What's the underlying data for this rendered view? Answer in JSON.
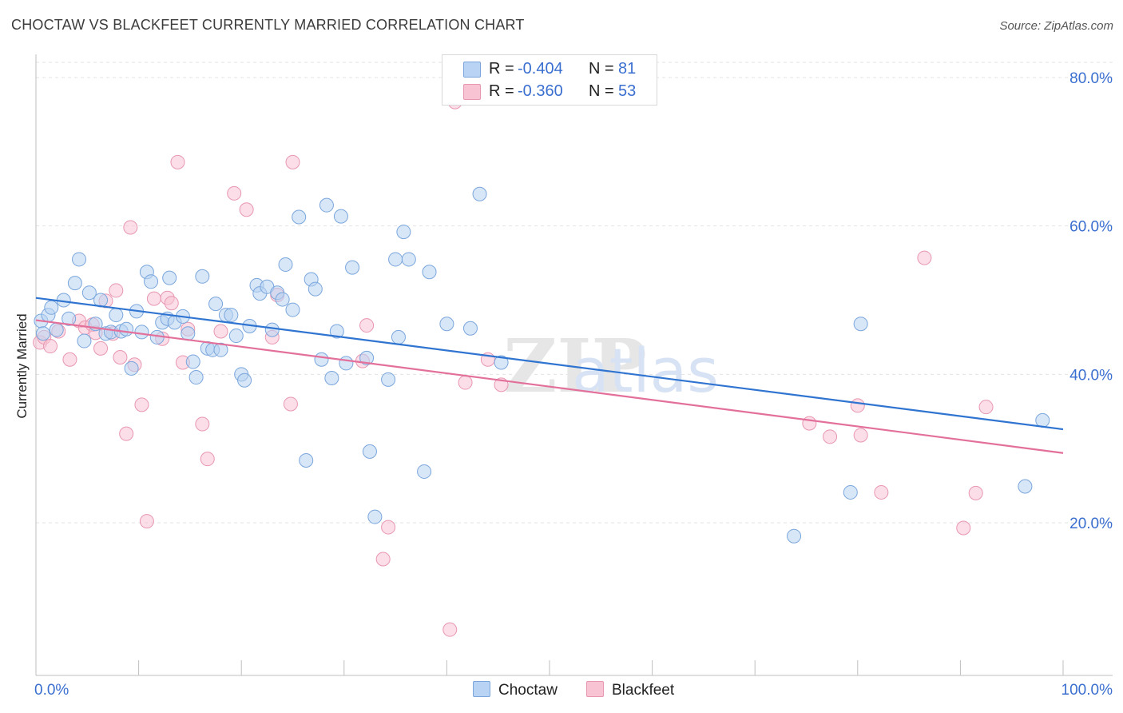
{
  "title": "CHOCTAW VS BLACKFEET CURRENTLY MARRIED CORRELATION CHART",
  "source": "Source: ZipAtlas.com",
  "colors": {
    "choctaw_fill": "#b8d3f3",
    "choctaw_stroke": "#7aa6dc",
    "choctaw_line": "#2f74d0",
    "blackfeet_fill": "#f8c3d3",
    "blackfeet_stroke": "#e897b1",
    "blackfeet_line": "#e3709a",
    "tick_label": "#3a6fd0",
    "grid": "#e3e3e3"
  },
  "legend": {
    "rows": [
      {
        "r_label": "R =",
        "r_value": "-0.404",
        "n_label": "N =",
        "n_value": "81"
      },
      {
        "r_label": "R =",
        "r_value": "-0.360",
        "n_label": "N =",
        "n_value": "53"
      }
    ]
  },
  "bottom_legend": {
    "choctaw": "Choctaw",
    "blackfeet": "Blackfeet"
  },
  "chart_data": {
    "type": "scatter",
    "title": "CHOCTAW VS BLACKFEET CURRENTLY MARRIED CORRELATION CHART",
    "xlabel": "",
    "ylabel": "Currently Married",
    "xlim": [
      0,
      100
    ],
    "ylim": [
      0,
      82
    ],
    "x_tick_labels": [
      "0.0%",
      "100.0%"
    ],
    "y_ticks": [
      20,
      40,
      60,
      80
    ],
    "y_tick_labels": [
      "20.0%",
      "40.0%",
      "60.0%",
      "80.0%"
    ],
    "grid": "horizontal dashed",
    "legend_position": "top-center",
    "watermark": "ZIPatlas",
    "series": [
      {
        "name": "Choctaw",
        "r": -0.404,
        "n": 81,
        "trend": {
          "x": [
            0,
            100
          ],
          "y": [
            50.3,
            32.6
          ]
        },
        "points": [
          [
            0.5,
            47.2
          ],
          [
            0.7,
            45.5
          ],
          [
            1.2,
            48.0
          ],
          [
            1.5,
            49.0
          ],
          [
            2.0,
            46.0
          ],
          [
            2.7,
            50.0
          ],
          [
            3.2,
            47.5
          ],
          [
            3.8,
            52.3
          ],
          [
            4.2,
            55.5
          ],
          [
            4.7,
            44.5
          ],
          [
            5.2,
            51.0
          ],
          [
            5.8,
            46.8
          ],
          [
            6.3,
            50.0
          ],
          [
            6.8,
            45.5
          ],
          [
            7.3,
            45.7
          ],
          [
            7.8,
            48.0
          ],
          [
            8.3,
            45.8
          ],
          [
            8.8,
            46.1
          ],
          [
            9.3,
            40.8
          ],
          [
            9.8,
            48.5
          ],
          [
            10.3,
            45.7
          ],
          [
            10.8,
            53.8
          ],
          [
            11.2,
            52.5
          ],
          [
            11.8,
            45.0
          ],
          [
            12.3,
            47.0
          ],
          [
            12.8,
            47.5
          ],
          [
            13.0,
            53.0
          ],
          [
            13.5,
            47.0
          ],
          [
            14.3,
            47.8
          ],
          [
            14.8,
            45.5
          ],
          [
            15.3,
            41.7
          ],
          [
            15.6,
            39.6
          ],
          [
            16.2,
            53.2
          ],
          [
            16.7,
            43.5
          ],
          [
            17.2,
            43.3
          ],
          [
            17.5,
            49.5
          ],
          [
            18.0,
            43.3
          ],
          [
            18.5,
            48.0
          ],
          [
            19.0,
            48.0
          ],
          [
            19.5,
            45.2
          ],
          [
            20.0,
            40.0
          ],
          [
            20.3,
            39.2
          ],
          [
            20.8,
            46.5
          ],
          [
            21.5,
            52.0
          ],
          [
            21.8,
            50.9
          ],
          [
            22.5,
            51.8
          ],
          [
            23.0,
            46.0
          ],
          [
            23.5,
            51.0
          ],
          [
            24.0,
            50.1
          ],
          [
            24.3,
            54.8
          ],
          [
            25.0,
            48.7
          ],
          [
            25.6,
            61.2
          ],
          [
            26.3,
            28.4
          ],
          [
            26.8,
            52.8
          ],
          [
            27.2,
            51.5
          ],
          [
            27.8,
            42.0
          ],
          [
            28.3,
            62.8
          ],
          [
            28.8,
            39.5
          ],
          [
            29.3,
            45.8
          ],
          [
            29.7,
            61.3
          ],
          [
            30.2,
            41.5
          ],
          [
            30.8,
            54.4
          ],
          [
            32.2,
            42.2
          ],
          [
            32.5,
            29.6
          ],
          [
            33.0,
            20.8
          ],
          [
            34.3,
            39.3
          ],
          [
            35.0,
            55.5
          ],
          [
            35.3,
            45.0
          ],
          [
            35.8,
            59.2
          ],
          [
            36.3,
            55.5
          ],
          [
            37.8,
            26.9
          ],
          [
            38.3,
            53.8
          ],
          [
            40.0,
            46.8
          ],
          [
            42.3,
            46.2
          ],
          [
            43.2,
            64.3
          ],
          [
            45.3,
            41.6
          ],
          [
            73.8,
            18.2
          ],
          [
            79.3,
            24.1
          ],
          [
            80.3,
            46.8
          ],
          [
            96.3,
            24.9
          ],
          [
            98.0,
            33.8
          ]
        ]
      },
      {
        "name": "Blackfeet",
        "r": -0.36,
        "n": 53,
        "trend": {
          "x": [
            0,
            100
          ],
          "y": [
            47.3,
            29.4
          ]
        },
        "points": [
          [
            0.4,
            44.3
          ],
          [
            0.8,
            45.0
          ],
          [
            1.4,
            43.8
          ],
          [
            2.2,
            45.8
          ],
          [
            3.3,
            42.0
          ],
          [
            4.2,
            47.2
          ],
          [
            4.8,
            46.3
          ],
          [
            5.5,
            46.7
          ],
          [
            5.8,
            45.6
          ],
          [
            6.3,
            43.5
          ],
          [
            6.8,
            49.9
          ],
          [
            7.5,
            45.5
          ],
          [
            7.8,
            51.3
          ],
          [
            8.2,
            42.3
          ],
          [
            8.8,
            32.0
          ],
          [
            9.2,
            59.8
          ],
          [
            9.6,
            41.3
          ],
          [
            10.3,
            35.9
          ],
          [
            10.8,
            20.2
          ],
          [
            11.5,
            50.2
          ],
          [
            12.3,
            44.8
          ],
          [
            12.8,
            50.3
          ],
          [
            13.2,
            49.6
          ],
          [
            13.8,
            68.6
          ],
          [
            14.3,
            41.6
          ],
          [
            14.8,
            46.1
          ],
          [
            16.2,
            33.3
          ],
          [
            16.7,
            28.6
          ],
          [
            18.0,
            45.8
          ],
          [
            19.3,
            64.4
          ],
          [
            20.5,
            62.2
          ],
          [
            23.0,
            45.0
          ],
          [
            23.5,
            50.7
          ],
          [
            24.8,
            36.0
          ],
          [
            25.0,
            68.6
          ],
          [
            31.8,
            41.8
          ],
          [
            32.2,
            46.6
          ],
          [
            34.3,
            19.4
          ],
          [
            33.8,
            15.1
          ],
          [
            40.3,
            5.6
          ],
          [
            40.8,
            76.7
          ],
          [
            41.8,
            38.9
          ],
          [
            44.0,
            42.0
          ],
          [
            45.3,
            38.6
          ],
          [
            75.3,
            33.4
          ],
          [
            77.3,
            31.6
          ],
          [
            80.0,
            35.8
          ],
          [
            80.3,
            31.8
          ],
          [
            82.3,
            24.1
          ],
          [
            86.5,
            55.7
          ],
          [
            90.3,
            19.3
          ],
          [
            91.5,
            24.0
          ],
          [
            92.5,
            35.6
          ]
        ]
      }
    ]
  }
}
